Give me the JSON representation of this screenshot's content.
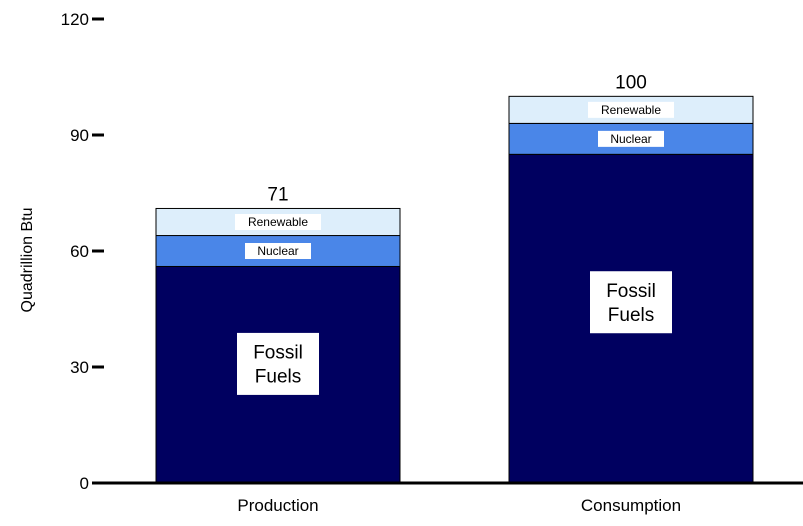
{
  "chart_data": {
    "type": "bar",
    "stacked": true,
    "categories": [
      "Production",
      "Consumption"
    ],
    "series": [
      {
        "name": "Fossil Fuels",
        "label_lines": [
          "Fossil",
          "Fuels"
        ],
        "values": [
          56,
          85
        ],
        "color": "#000060"
      },
      {
        "name": "Nuclear",
        "label_lines": [
          "Nuclear"
        ],
        "values": [
          8,
          8
        ],
        "color": "#4a86e8"
      },
      {
        "name": "Renewable",
        "label_lines": [
          "Renewable"
        ],
        "values": [
          7,
          7
        ],
        "color": "#ddeefb"
      }
    ],
    "totals": [
      "71",
      "100"
    ],
    "ylabel": "Quadrillion Btu",
    "yticks": [
      0,
      30,
      60,
      90,
      120
    ],
    "ylim": [
      0,
      120
    ],
    "grid": false,
    "legend": "none"
  }
}
